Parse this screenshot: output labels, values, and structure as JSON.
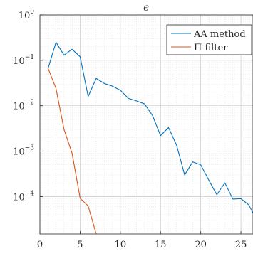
{
  "chart_data": {
    "type": "line",
    "title": "ϵ",
    "xlabel": "",
    "ylabel": "",
    "x_scale": "linear",
    "y_scale": "log",
    "xlim": [
      0,
      26.5
    ],
    "ylim": [
      1.5e-05,
      1
    ],
    "grid": true,
    "minor_grid": true,
    "legend_position": "top-right",
    "x_ticks": [
      0,
      5,
      10,
      15,
      20,
      25
    ],
    "x_tick_labels": [
      "0",
      "5",
      "10",
      "15",
      "20",
      "25"
    ],
    "y_ticks": [
      {
        "base": "10",
        "exp": "0",
        "value": 1
      },
      {
        "base": "10",
        "exp": "−1",
        "value": 0.1
      },
      {
        "base": "10",
        "exp": "−2",
        "value": 0.01
      },
      {
        "base": "10",
        "exp": "−3",
        "value": 0.001
      },
      {
        "base": "10",
        "exp": "−4",
        "value": 0.0001
      }
    ],
    "series": [
      {
        "name": "AA method",
        "color": "#0072BD",
        "x": [
          1,
          2,
          3,
          4,
          5,
          6,
          7,
          8,
          9,
          10,
          11,
          12,
          13,
          14,
          15,
          16,
          17,
          18,
          19,
          20,
          21,
          22,
          23,
          24,
          25,
          26,
          27
        ],
        "values": [
          0.065,
          0.25,
          0.13,
          0.175,
          0.12,
          0.016,
          0.04,
          0.031,
          0.027,
          0.022,
          0.0145,
          0.0128,
          0.011,
          0.0061,
          0.0022,
          0.0033,
          0.00135,
          0.0003,
          0.00058,
          0.0005,
          0.00023,
          0.00011,
          0.0002,
          8.8e-05,
          9e-05,
          6.5e-05,
          2.8e-05
        ]
      },
      {
        "name": "Π filter",
        "color": "#D95319",
        "x": [
          1,
          2,
          3,
          4,
          5,
          6,
          7
        ],
        "values": [
          0.068,
          0.024,
          0.003,
          0.0009,
          9.2e-05,
          6.2e-05,
          1.5e-05
        ]
      }
    ]
  }
}
